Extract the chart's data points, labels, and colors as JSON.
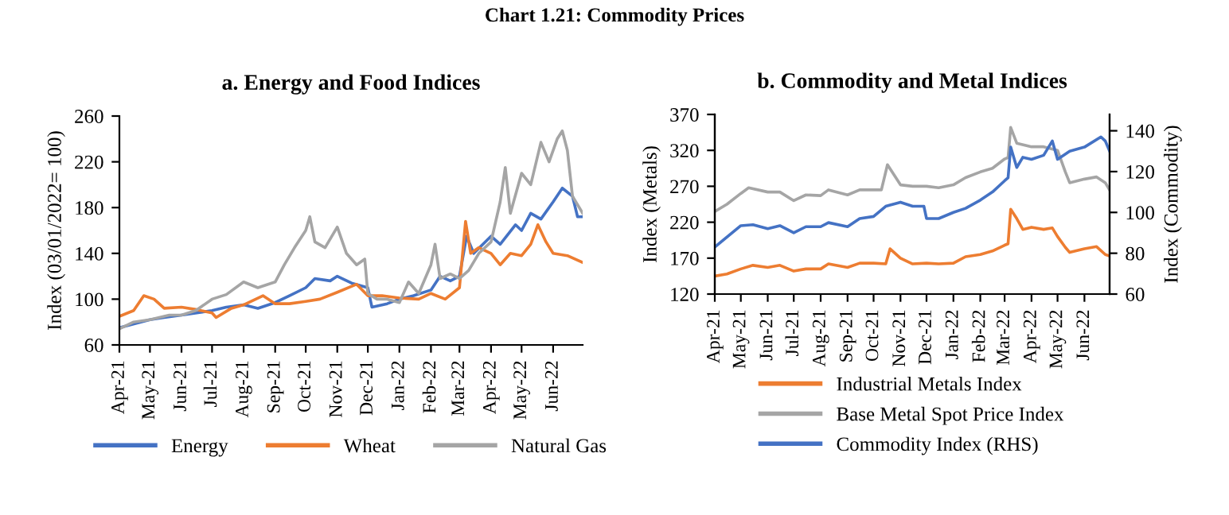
{
  "chart_data": [
    {
      "type": "line",
      "title": "a. Energy and Food Indices",
      "ylabel": "Index (03/01/2022= 100)",
      "annotations": [
        "Chart 1.21: Commodity Prices"
      ],
      "xlim": [
        "2021-04-01",
        "2022-06-30"
      ],
      "ylim": [
        60,
        260
      ],
      "yticks": [
        60,
        100,
        140,
        180,
        220,
        260
      ],
      "xticks": [
        {
          "value": "2021-04-01",
          "label": "Apr-21"
        },
        {
          "value": "2021-05-01",
          "label": "May-21"
        },
        {
          "value": "2021-06-01",
          "label": "Jun-21"
        },
        {
          "value": "2021-07-01",
          "label": "Jul-21"
        },
        {
          "value": "2021-08-01",
          "label": "Aug-21"
        },
        {
          "value": "2021-09-01",
          "label": "Sep-21"
        },
        {
          "value": "2021-10-01",
          "label": "Oct-21"
        },
        {
          "value": "2021-11-01",
          "label": "Nov-21"
        },
        {
          "value": "2021-12-01",
          "label": "Dec-21"
        },
        {
          "value": "2022-01-01",
          "label": "Jan-22"
        },
        {
          "value": "2022-02-01",
          "label": "Feb-22"
        },
        {
          "value": "2022-03-01",
          "label": "Mar-22"
        },
        {
          "value": "2022-04-01",
          "label": "Apr-22"
        },
        {
          "value": "2022-05-01",
          "label": "May-22"
        },
        {
          "value": "2022-06-01",
          "label": "Jun-22"
        }
      ],
      "grid": false,
      "legend": "bottom",
      "marker": "none",
      "line_style": "solid",
      "series": [
        {
          "name": "Energy",
          "color": "#4472c4",
          "x": [
            "2021-04-01",
            "2021-05-01",
            "2021-05-15",
            "2021-06-01",
            "2021-07-01",
            "2021-07-15",
            "2021-08-01",
            "2021-08-15",
            "2021-09-01",
            "2021-09-15",
            "2021-10-01",
            "2021-10-10",
            "2021-10-25",
            "2021-11-01",
            "2021-11-15",
            "2021-12-01",
            "2021-12-05",
            "2021-12-20",
            "2022-01-01",
            "2022-01-15",
            "2022-02-01",
            "2022-02-10",
            "2022-02-20",
            "2022-03-01",
            "2022-03-08",
            "2022-03-15",
            "2022-04-01",
            "2022-04-10",
            "2022-04-25",
            "2022-05-01",
            "2022-05-10",
            "2022-05-20",
            "2022-06-01",
            "2022-06-10",
            "2022-06-20",
            "2022-06-25",
            "2022-06-30"
          ],
          "values": [
            75,
            82,
            84,
            86,
            90,
            93,
            95,
            92,
            97,
            103,
            110,
            118,
            116,
            120,
            114,
            110,
            93,
            96,
            100,
            103,
            108,
            120,
            116,
            120,
            155,
            140,
            155,
            148,
            165,
            160,
            175,
            170,
            185,
            197,
            190,
            172,
            172
          ]
        },
        {
          "name": "Wheat",
          "color": "#ed7d31",
          "x": [
            "2021-04-01",
            "2021-04-15",
            "2021-04-25",
            "2021-05-05",
            "2021-05-15",
            "2021-06-01",
            "2021-06-15",
            "2021-07-01",
            "2021-07-05",
            "2021-07-20",
            "2021-08-01",
            "2021-08-20",
            "2021-09-01",
            "2021-09-15",
            "2021-10-01",
            "2021-10-15",
            "2021-11-01",
            "2021-11-20",
            "2021-12-01",
            "2021-12-15",
            "2022-01-01",
            "2022-01-20",
            "2022-02-01",
            "2022-02-15",
            "2022-03-01",
            "2022-03-07",
            "2022-03-12",
            "2022-03-20",
            "2022-04-01",
            "2022-04-10",
            "2022-04-20",
            "2022-05-01",
            "2022-05-10",
            "2022-05-17",
            "2022-05-25",
            "2022-06-01",
            "2022-06-15",
            "2022-06-30"
          ],
          "values": [
            85,
            90,
            103,
            100,
            92,
            93,
            91,
            88,
            84,
            92,
            95,
            103,
            96,
            96,
            98,
            100,
            106,
            113,
            103,
            103,
            101,
            100,
            105,
            100,
            110,
            168,
            140,
            145,
            140,
            130,
            140,
            138,
            148,
            165,
            150,
            140,
            138,
            132
          ]
        },
        {
          "name": "Natural Gas",
          "color": "#a5a5a5",
          "x": [
            "2021-04-01",
            "2021-04-15",
            "2021-05-01",
            "2021-05-20",
            "2021-06-01",
            "2021-06-15",
            "2021-07-01",
            "2021-07-15",
            "2021-08-01",
            "2021-08-15",
            "2021-09-01",
            "2021-09-10",
            "2021-09-20",
            "2021-10-01",
            "2021-10-05",
            "2021-10-10",
            "2021-10-20",
            "2021-11-01",
            "2021-11-10",
            "2021-11-20",
            "2021-11-28",
            "2021-12-01",
            "2021-12-10",
            "2021-12-20",
            "2022-01-01",
            "2022-01-10",
            "2022-01-20",
            "2022-02-01",
            "2022-02-05",
            "2022-02-10",
            "2022-02-20",
            "2022-03-01",
            "2022-03-10",
            "2022-03-20",
            "2022-04-01",
            "2022-04-10",
            "2022-04-15",
            "2022-04-20",
            "2022-05-01",
            "2022-05-10",
            "2022-05-20",
            "2022-05-28",
            "2022-06-05",
            "2022-06-10",
            "2022-06-15",
            "2022-06-20",
            "2022-06-30"
          ],
          "values": [
            74,
            80,
            82,
            86,
            86,
            90,
            100,
            104,
            115,
            110,
            115,
            130,
            145,
            160,
            172,
            150,
            145,
            163,
            140,
            130,
            135,
            105,
            100,
            100,
            97,
            115,
            105,
            130,
            148,
            118,
            122,
            118,
            125,
            140,
            150,
            185,
            215,
            175,
            210,
            200,
            237,
            220,
            240,
            247,
            230,
            190,
            175
          ]
        }
      ]
    },
    {
      "type": "line",
      "title": "b. Commodity and Metal Indices",
      "ylabel": "Index (Metals)",
      "y2label": "Index (Commodity)",
      "xlim": [
        "2021-04-01",
        "2022-06-30"
      ],
      "ylim": [
        120,
        370
      ],
      "yticks": [
        120,
        170,
        220,
        270,
        320,
        370
      ],
      "y2lim": [
        60,
        148
      ],
      "y2ticks": [
        60,
        80,
        100,
        120,
        140
      ],
      "xticks": [
        {
          "value": "2021-04-01",
          "label": "Apr-21"
        },
        {
          "value": "2021-05-01",
          "label": "May-21"
        },
        {
          "value": "2021-06-01",
          "label": "Jun-21"
        },
        {
          "value": "2021-07-01",
          "label": "Jul-21"
        },
        {
          "value": "2021-08-01",
          "label": "Aug-21"
        },
        {
          "value": "2021-09-01",
          "label": "Sep-21"
        },
        {
          "value": "2021-10-01",
          "label": "Oct-21"
        },
        {
          "value": "2021-11-01",
          "label": "Nov-21"
        },
        {
          "value": "2021-12-01",
          "label": "Dec-21"
        },
        {
          "value": "2022-01-01",
          "label": "Jan-22"
        },
        {
          "value": "2022-02-01",
          "label": "Feb-22"
        },
        {
          "value": "2022-03-01",
          "label": "Mar-22"
        },
        {
          "value": "2022-04-01",
          "label": "Apr-22"
        },
        {
          "value": "2022-05-01",
          "label": "May-22"
        },
        {
          "value": "2022-06-01",
          "label": "Jun-22"
        }
      ],
      "grid": false,
      "legend": "bottom",
      "marker": "none",
      "line_style": "solid",
      "series": [
        {
          "name": "Industrial Metals Index",
          "color": "#ed7d31",
          "x": [
            "2021-04-01",
            "2021-04-15",
            "2021-05-01",
            "2021-05-15",
            "2021-06-01",
            "2021-06-15",
            "2021-07-01",
            "2021-07-15",
            "2021-08-01",
            "2021-08-10",
            "2021-09-01",
            "2021-09-15",
            "2021-10-01",
            "2021-10-15",
            "2021-10-20",
            "2021-11-01",
            "2021-11-15",
            "2021-12-01",
            "2021-12-15",
            "2022-01-01",
            "2022-01-15",
            "2022-02-01",
            "2022-02-15",
            "2022-03-01",
            "2022-03-05",
            "2022-03-08",
            "2022-03-15",
            "2022-03-22",
            "2022-04-01",
            "2022-04-15",
            "2022-04-25",
            "2022-05-01",
            "2022-05-10",
            "2022-05-15",
            "2022-06-01",
            "2022-06-15",
            "2022-06-25",
            "2022-06-30"
          ],
          "values": [
            145,
            148,
            155,
            160,
            157,
            160,
            152,
            155,
            155,
            162,
            157,
            163,
            163,
            162,
            183,
            170,
            162,
            163,
            162,
            163,
            172,
            175,
            180,
            188,
            190,
            238,
            225,
            210,
            213,
            210,
            212,
            200,
            185,
            178,
            183,
            186,
            175,
            173
          ]
        },
        {
          "name": "Base Metal Spot Price Index",
          "color": "#a5a5a5",
          "x": [
            "2021-04-01",
            "2021-04-15",
            "2021-05-01",
            "2021-05-10",
            "2021-06-01",
            "2021-06-15",
            "2021-07-01",
            "2021-07-15",
            "2021-08-01",
            "2021-08-10",
            "2021-09-01",
            "2021-09-15",
            "2021-10-01",
            "2021-10-10",
            "2021-10-17",
            "2021-11-01",
            "2021-11-15",
            "2021-12-01",
            "2021-12-15",
            "2022-01-01",
            "2022-01-15",
            "2022-02-01",
            "2022-02-15",
            "2022-03-01",
            "2022-03-05",
            "2022-03-08",
            "2022-03-15",
            "2022-04-01",
            "2022-04-15",
            "2022-05-01",
            "2022-05-10",
            "2022-05-15",
            "2022-06-01",
            "2022-06-15",
            "2022-06-25",
            "2022-06-30"
          ],
          "values": [
            235,
            245,
            260,
            268,
            262,
            262,
            250,
            258,
            257,
            265,
            258,
            265,
            265,
            265,
            300,
            272,
            270,
            270,
            268,
            272,
            282,
            290,
            295,
            308,
            310,
            352,
            330,
            325,
            325,
            320,
            290,
            275,
            280,
            283,
            275,
            265
          ]
        },
        {
          "name": "Commodity Index (RHS)",
          "color": "#4472c4",
          "axis": "y2",
          "x": [
            "2021-04-01",
            "2021-05-01",
            "2021-05-15",
            "2021-06-01",
            "2021-06-15",
            "2021-07-01",
            "2021-07-15",
            "2021-08-01",
            "2021-08-10",
            "2021-09-01",
            "2021-09-15",
            "2021-10-01",
            "2021-10-15",
            "2021-11-01",
            "2021-11-15",
            "2021-11-28",
            "2021-12-01",
            "2021-12-15",
            "2022-01-01",
            "2022-01-15",
            "2022-02-01",
            "2022-02-15",
            "2022-03-01",
            "2022-03-05",
            "2022-03-08",
            "2022-03-15",
            "2022-03-22",
            "2022-04-01",
            "2022-04-15",
            "2022-04-25",
            "2022-05-01",
            "2022-05-15",
            "2022-06-01",
            "2022-06-20",
            "2022-06-25",
            "2022-06-30"
          ],
          "values": [
            83,
            93.5,
            94,
            92,
            93.5,
            90,
            93,
            93,
            95,
            93,
            97,
            98,
            103,
            105,
            103,
            103,
            97,
            97,
            100,
            102,
            106,
            110,
            115.5,
            117,
            132,
            122,
            127,
            126,
            128,
            135,
            126,
            130,
            132,
            137,
            135,
            130
          ]
        }
      ]
    }
  ]
}
